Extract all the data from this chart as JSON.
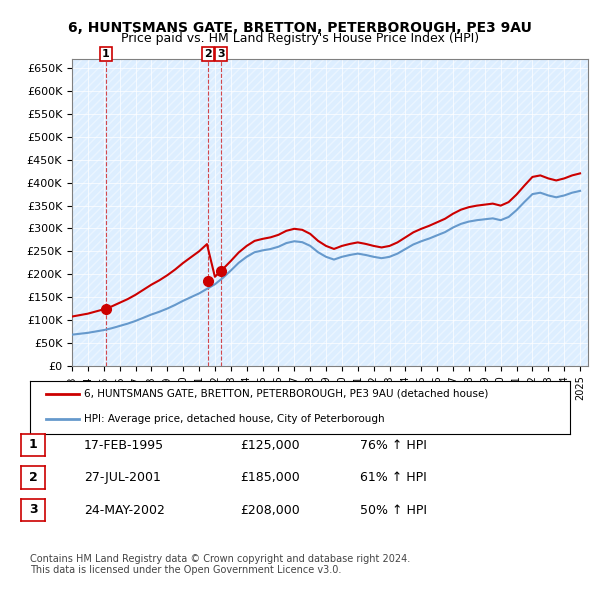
{
  "title_line1": "6, HUNTSMANS GATE, BRETTON, PETERBOROUGH, PE3 9AU",
  "title_line2": "Price paid vs. HM Land Registry's House Price Index (HPI)",
  "sale_dates": [
    "1995-02-17",
    "2001-07-27",
    "2002-05-24"
  ],
  "sale_prices": [
    125000,
    185000,
    208000
  ],
  "sale_labels": [
    "1",
    "2",
    "3"
  ],
  "legend_line1": "6, HUNTSMANS GATE, BRETTON, PETERBOROUGH, PE3 9AU (detached house)",
  "legend_line2": "HPI: Average price, detached house, City of Peterborough",
  "table_rows": [
    [
      "1",
      "17-FEB-1995",
      "£125,000",
      "76% ↑ HPI"
    ],
    [
      "2",
      "27-JUL-2001",
      "£185,000",
      "61% ↑ HPI"
    ],
    [
      "3",
      "24-MAY-2002",
      "£208,000",
      "50% ↑ HPI"
    ]
  ],
  "footnote": "Contains HM Land Registry data © Crown copyright and database right 2024.\nThis data is licensed under the Open Government Licence v3.0.",
  "red_color": "#cc0000",
  "blue_color": "#6699cc",
  "background_chart": "#ddeeff",
  "background_outside": "#ffffff",
  "ylim": [
    0,
    670000
  ],
  "yticks": [
    0,
    50000,
    100000,
    150000,
    200000,
    250000,
    300000,
    350000,
    400000,
    450000,
    500000,
    550000,
    600000,
    650000
  ],
  "ytick_labels": [
    "£0",
    "£50K",
    "£100K",
    "£150K",
    "£200K",
    "£250K",
    "£300K",
    "£350K",
    "£400K",
    "£450K",
    "£500K",
    "£550K",
    "£600K",
    "£650K"
  ]
}
